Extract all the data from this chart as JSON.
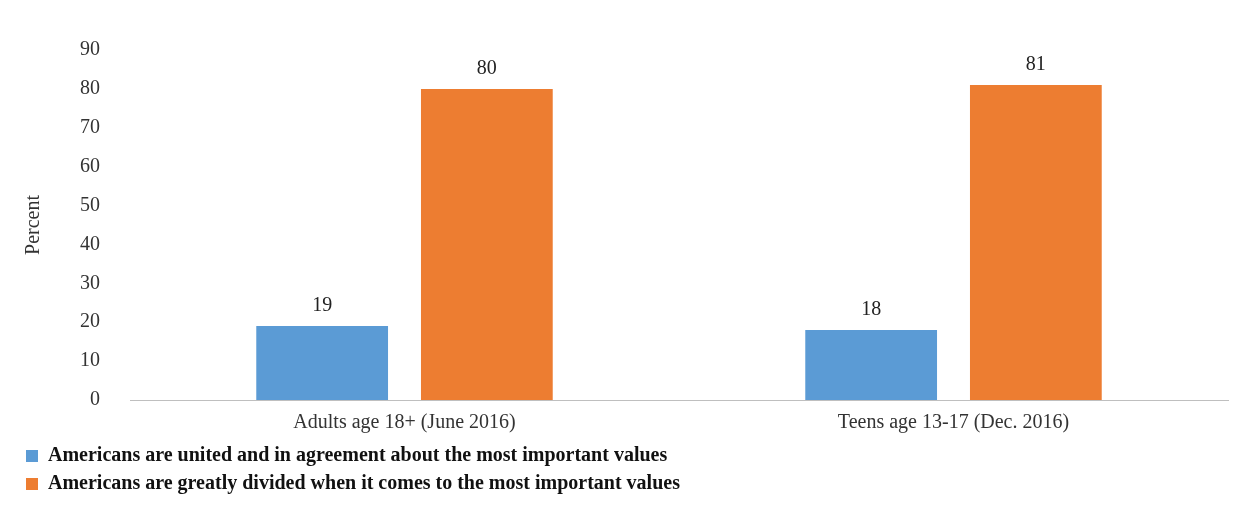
{
  "chart_data": {
    "type": "bar",
    "ylabel": "Percent",
    "categories": [
      "Adults age 18+ (June 2016)",
      "Teens age 13-17 (Dec. 2016)"
    ],
    "series": [
      {
        "name": "Americans are united and in agreement about the most important values",
        "color": "#5b9bd5",
        "values": [
          19,
          18
        ]
      },
      {
        "name": "Americans are greatly divided when it comes to the most important values",
        "color": "#ed7d31",
        "values": [
          80,
          81
        ]
      }
    ],
    "ylim": [
      0,
      90
    ],
    "yticks": [
      0,
      10,
      20,
      30,
      40,
      50,
      60,
      70,
      80,
      90
    ],
    "grid": false,
    "legend": "bottom",
    "data_labels": true
  }
}
